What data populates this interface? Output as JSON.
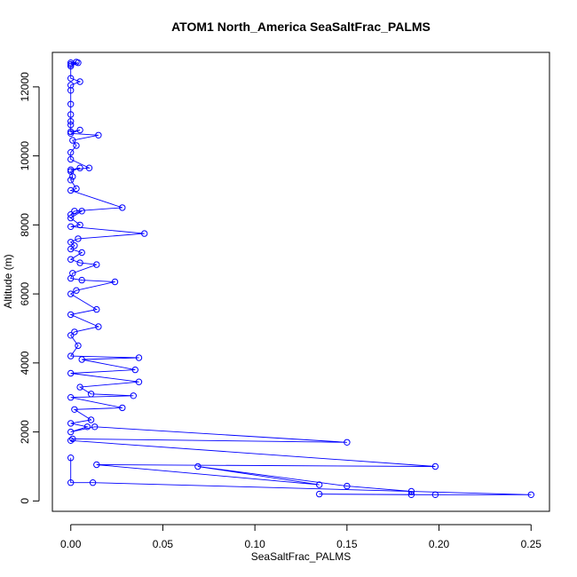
{
  "chart_data": {
    "type": "line",
    "title": "ATOM1 North_America SeaSaltFrac_PALMS",
    "xlabel": "SeaSaltFrac_PALMS",
    "ylabel": "Altitude (m)",
    "xlim": [
      -0.01,
      0.26
    ],
    "ylim": [
      -300,
      13000
    ],
    "x_ticks": [
      0.0,
      0.05,
      0.1,
      0.15,
      0.2,
      0.25
    ],
    "x_tick_labels": [
      "0.00",
      "0.05",
      "0.10",
      "0.15",
      "0.20",
      "0.25"
    ],
    "y_ticks": [
      0,
      2000,
      4000,
      6000,
      8000,
      10000,
      12000
    ],
    "y_tick_labels": [
      "0",
      "2000",
      "4000",
      "6000",
      "8000",
      "10000",
      "12000"
    ],
    "grid": false,
    "legend": "none",
    "colors": {
      "series": "#0000ff",
      "axis": "#000000"
    },
    "series": [
      {
        "values": [
          [
            0.0,
            12700
          ],
          [
            0.003,
            12720
          ],
          [
            0.0,
            12650
          ],
          [
            0.004,
            12700
          ],
          [
            0.0,
            12600
          ],
          [
            0.0,
            12250
          ],
          [
            0.005,
            12150
          ],
          [
            0.0,
            12050
          ],
          [
            0.0,
            11900
          ],
          [
            0.0,
            11500
          ],
          [
            0.0,
            11200
          ],
          [
            0.0,
            11000
          ],
          [
            0.0,
            10900
          ],
          [
            0.0,
            10700
          ],
          [
            0.005,
            10750
          ],
          [
            0.0,
            10650
          ],
          [
            0.015,
            10600
          ],
          [
            0.001,
            10450
          ],
          [
            0.003,
            10300
          ],
          [
            0.0,
            10100
          ],
          [
            0.0,
            9900
          ],
          [
            0.01,
            9650
          ],
          [
            0.0,
            9600
          ],
          [
            0.005,
            9650
          ],
          [
            0.0,
            9550
          ],
          [
            0.001,
            9400
          ],
          [
            0.0,
            9300
          ],
          [
            0.003,
            9050
          ],
          [
            0.0,
            9000
          ],
          [
            0.028,
            8500
          ],
          [
            0.002,
            8400
          ],
          [
            0.0,
            8300
          ],
          [
            0.006,
            8400
          ],
          [
            0.0,
            8200
          ],
          [
            0.005,
            8000
          ],
          [
            0.0,
            7950
          ],
          [
            0.04,
            7750
          ],
          [
            0.004,
            7600
          ],
          [
            0.0,
            7500
          ],
          [
            0.002,
            7400
          ],
          [
            0.0,
            7300
          ],
          [
            0.006,
            7200
          ],
          [
            0.0,
            7000
          ],
          [
            0.005,
            6900
          ],
          [
            0.014,
            6850
          ],
          [
            0.001,
            6600
          ],
          [
            0.0,
            6450
          ],
          [
            0.006,
            6400
          ],
          [
            0.024,
            6350
          ],
          [
            0.003,
            6100
          ],
          [
            0.0,
            6000
          ],
          [
            0.014,
            5550
          ],
          [
            0.0,
            5400
          ],
          [
            0.015,
            5050
          ],
          [
            0.002,
            4900
          ],
          [
            0.0,
            4800
          ],
          [
            0.004,
            4500
          ],
          [
            0.0,
            4200
          ],
          [
            0.037,
            4150
          ],
          [
            0.006,
            4100
          ],
          [
            0.035,
            3800
          ],
          [
            0.0,
            3700
          ],
          [
            0.037,
            3450
          ],
          [
            0.005,
            3300
          ],
          [
            0.011,
            3100
          ],
          [
            0.034,
            3050
          ],
          [
            0.0,
            3000
          ],
          [
            0.028,
            2700
          ],
          [
            0.002,
            2650
          ],
          [
            0.011,
            2350
          ],
          [
            0.0,
            2250
          ],
          [
            0.009,
            2150
          ],
          [
            0.0,
            2000
          ],
          [
            0.013,
            2150
          ],
          [
            0.15,
            1700
          ],
          [
            0.001,
            1800
          ],
          [
            0.0,
            1750
          ],
          [
            0.198,
            1000
          ],
          [
            0.014,
            1050
          ],
          [
            0.135,
            470
          ],
          [
            0.069,
            1000
          ],
          [
            0.15,
            430
          ],
          [
            0.185,
            280
          ],
          [
            0.185,
            180
          ],
          [
            0.135,
            200
          ],
          [
            0.198,
            180
          ],
          [
            0.25,
            180
          ],
          [
            0.012,
            530
          ],
          [
            0.0,
            530
          ],
          [
            0.0,
            1250
          ]
        ]
      }
    ]
  }
}
